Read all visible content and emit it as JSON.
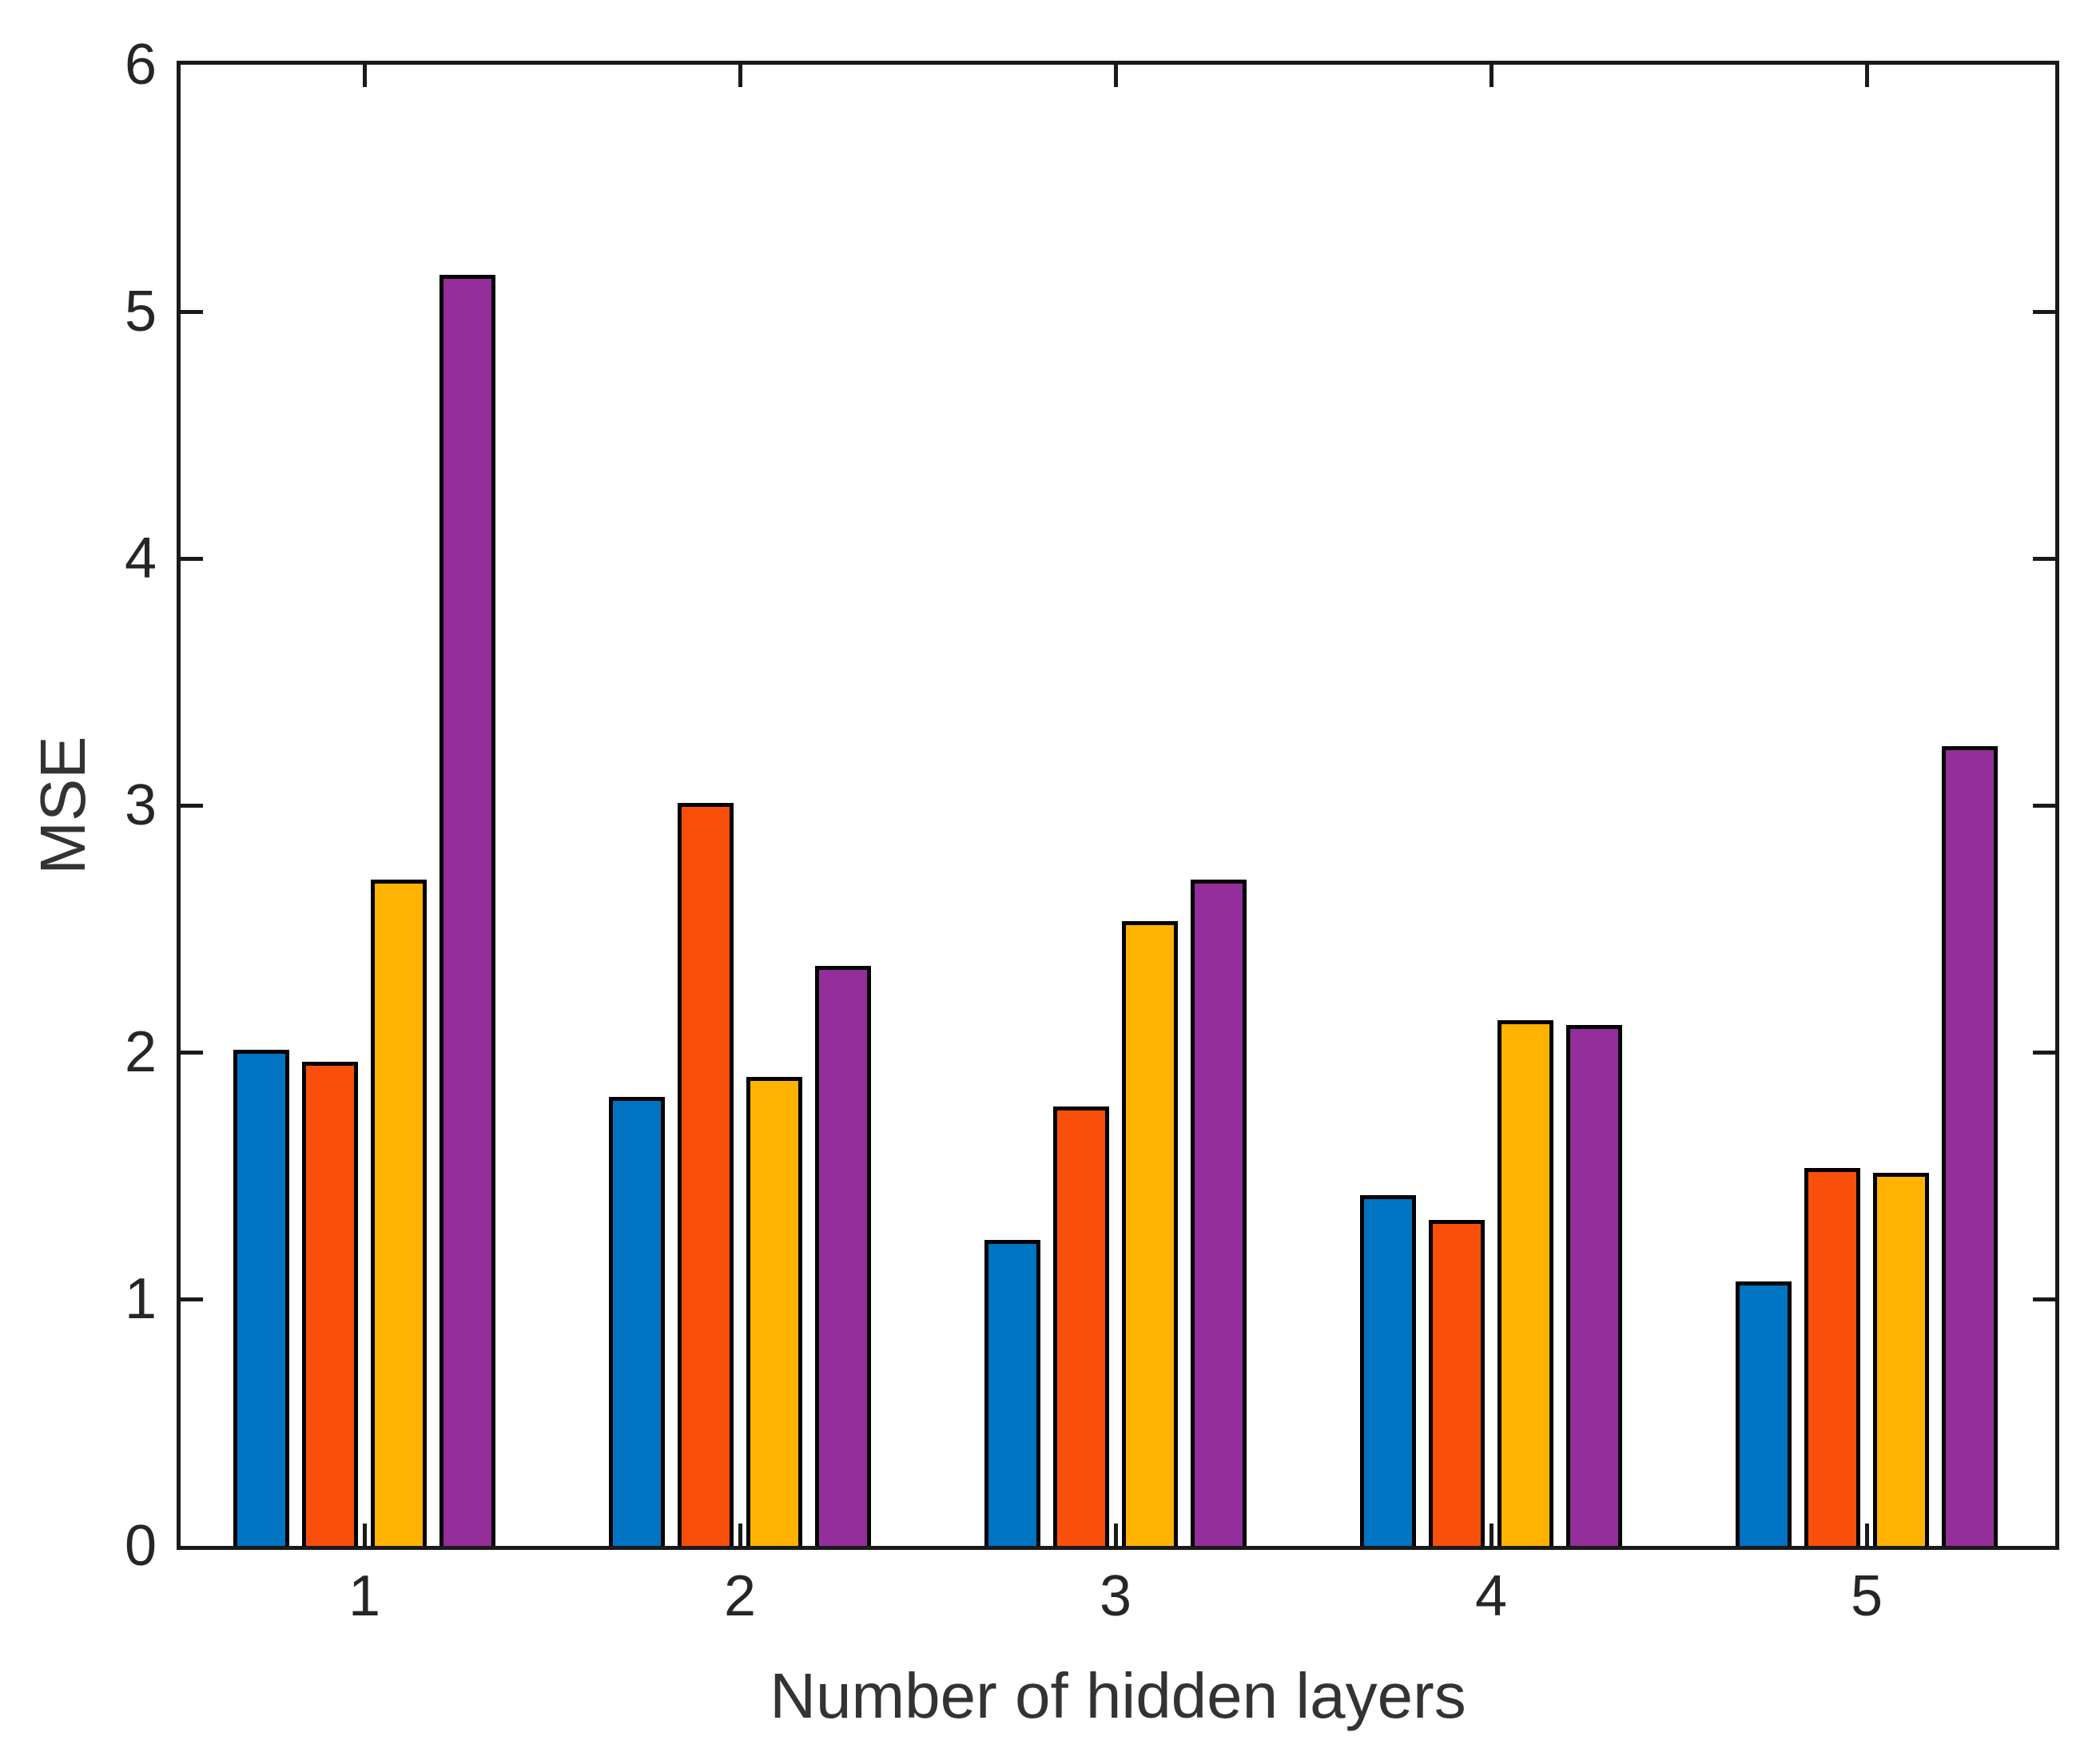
{
  "chart_data": {
    "type": "bar",
    "title": "",
    "xlabel": "Number of hidden layers",
    "ylabel": "MSE",
    "categories": [
      "1",
      "2",
      "3",
      "4",
      "5"
    ],
    "series": [
      {
        "name": "blue",
        "color": "#0073C3",
        "values": [
          2.01,
          1.82,
          1.24,
          1.42,
          1.07
        ]
      },
      {
        "name": "orange",
        "color": "#F8500A",
        "values": [
          1.96,
          3.01,
          1.78,
          1.32,
          1.53
        ]
      },
      {
        "name": "yellow",
        "color": "#FFB300",
        "values": [
          2.7,
          1.9,
          2.53,
          2.13,
          1.51
        ]
      },
      {
        "name": "purple",
        "color": "#942E9A",
        "values": [
          5.15,
          2.35,
          2.7,
          2.11,
          3.24
        ]
      }
    ],
    "ylim": [
      0,
      6
    ],
    "yticks": [
      "0",
      "1",
      "2",
      "3",
      "4",
      "5",
      "6"
    ],
    "grid": false,
    "legend": "none",
    "bar_edge_color": "#000000",
    "axis_color": "#1a1a1a",
    "tick_text_color": "#262626",
    "label_text_color": "#333333",
    "background": "#ffffff"
  }
}
